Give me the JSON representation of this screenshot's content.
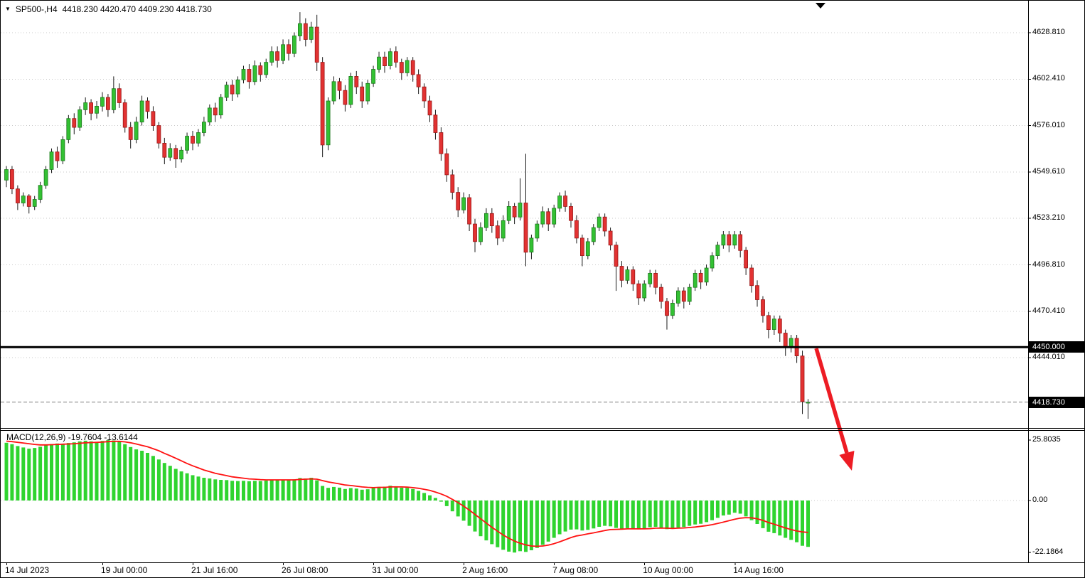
{
  "header": {
    "collapse_icon": "▼",
    "symbol_period": "SP500-,H4",
    "ohlc_text": "4418.230 4420.470 4409.230 4418.730"
  },
  "colors": {
    "bull": "#33C133",
    "bull_stroke": "#1D7A1D",
    "bear": "#E23232",
    "bear_stroke": "#9A1616",
    "wick": "#1A1A1A",
    "macd_hist": "#2FD42F",
    "macd_signal": "#FF1212",
    "arrow": "#ED1C24",
    "grid": "#C9C9C9",
    "hline": "#000000",
    "axis_line": "#000000",
    "label_bg": "#000000",
    "label_fg": "#FFFFFF"
  },
  "chart_data": [
    {
      "type": "candlestick",
      "title": "SP500-,H4",
      "symbol": "SP500-",
      "timeframe": "H4",
      "last_ohlc": {
        "open": 4418.23,
        "high": 4420.47,
        "low": 4409.23,
        "close": 4418.73
      },
      "ylim": [
        4404,
        4647
      ],
      "y_axis_labels": [
        4628.81,
        4602.41,
        4576.01,
        4549.61,
        4523.21,
        4496.81,
        4470.41,
        4444.01
      ],
      "horizontal_line": 4450.0,
      "bid_price": 4418.73,
      "x_axis_labels": [
        {
          "text": "14 Jul 2023",
          "bar": 0
        },
        {
          "text": "19 Jul 00:00",
          "bar": 17
        },
        {
          "text": "21 Jul 16:00",
          "bar": 33
        },
        {
          "text": "26 Jul 08:00",
          "bar": 49
        },
        {
          "text": "31 Jul 00:00",
          "bar": 65
        },
        {
          "text": "2 Aug 16:00",
          "bar": 81
        },
        {
          "text": "7 Aug 08:00",
          "bar": 97
        },
        {
          "text": "10 Aug 00:00",
          "bar": 113
        },
        {
          "text": "14 Aug 16:00",
          "bar": 129
        }
      ],
      "candles": [
        [
          4545,
          4553,
          4541,
          4551
        ],
        [
          4551,
          4553,
          4537,
          4540
        ],
        [
          4540,
          4542,
          4528,
          4532
        ],
        [
          4532,
          4538,
          4530,
          4536
        ],
        [
          4536,
          4537,
          4526,
          4530
        ],
        [
          4530,
          4536,
          4528,
          4534
        ],
        [
          4534,
          4544,
          4532,
          4542
        ],
        [
          4542,
          4553,
          4540,
          4551
        ],
        [
          4551,
          4563,
          4549,
          4561
        ],
        [
          4561,
          4564,
          4552,
          4556
        ],
        [
          4556,
          4570,
          4554,
          4568
        ],
        [
          4568,
          4582,
          4566,
          4580
        ],
        [
          4580,
          4583,
          4571,
          4575
        ],
        [
          4575,
          4587,
          4573,
          4585
        ],
        [
          4585,
          4592,
          4582,
          4589
        ],
        [
          4589,
          4591,
          4579,
          4583
        ],
        [
          4583,
          4590,
          4580,
          4587
        ],
        [
          4587,
          4595,
          4584,
          4592
        ],
        [
          4592,
          4594,
          4581,
          4585
        ],
        [
          4585,
          4604,
          4583,
          4597
        ],
        [
          4597,
          4600,
          4586,
          4589
        ],
        [
          4589,
          4591,
          4572,
          4575
        ],
        [
          4575,
          4578,
          4563,
          4568
        ],
        [
          4568,
          4581,
          4566,
          4578
        ],
        [
          4578,
          4593,
          4576,
          4590
        ],
        [
          4590,
          4592,
          4580,
          4584
        ],
        [
          4584,
          4587,
          4573,
          4576
        ],
        [
          4576,
          4578,
          4563,
          4566
        ],
        [
          4566,
          4569,
          4554,
          4558
        ],
        [
          4558,
          4566,
          4556,
          4563
        ],
        [
          4563,
          4565,
          4552,
          4557
        ],
        [
          4557,
          4564,
          4555,
          4562
        ],
        [
          4562,
          4572,
          4560,
          4570
        ],
        [
          4570,
          4573,
          4562,
          4566
        ],
        [
          4566,
          4574,
          4564,
          4572
        ],
        [
          4572,
          4581,
          4570,
          4578
        ],
        [
          4578,
          4588,
          4576,
          4586
        ],
        [
          4586,
          4589,
          4578,
          4582
        ],
        [
          4582,
          4594,
          4580,
          4592
        ],
        [
          4592,
          4601,
          4590,
          4599
        ],
        [
          4599,
          4602,
          4590,
          4594
        ],
        [
          4594,
          4604,
          4592,
          4602
        ],
        [
          4602,
          4610,
          4600,
          4608
        ],
        [
          4608,
          4611,
          4597,
          4601
        ],
        [
          4601,
          4613,
          4599,
          4610
        ],
        [
          4610,
          4612,
          4601,
          4605
        ],
        [
          4605,
          4614,
          4603,
          4612
        ],
        [
          4612,
          4621,
          4610,
          4618
        ],
        [
          4618,
          4621,
          4609,
          4613
        ],
        [
          4613,
          4625,
          4611,
          4622
        ],
        [
          4622,
          4625,
          4613,
          4617
        ],
        [
          4617,
          4629,
          4615,
          4627
        ],
        [
          4627,
          4640.5,
          4624,
          4634
        ],
        [
          4634,
          4637,
          4621,
          4625
        ],
        [
          4625,
          4635,
          4623,
          4632
        ],
        [
          4632,
          4639,
          4607,
          4612
        ],
        [
          4612,
          4615,
          4558,
          4565
        ],
        [
          4565,
          4592,
          4562,
          4590
        ],
        [
          4590,
          4604,
          4588,
          4601
        ],
        [
          4601,
          4603,
          4591,
          4596
        ],
        [
          4596,
          4599,
          4584,
          4588
        ],
        [
          4588,
          4606,
          4586,
          4604
        ],
        [
          4604,
          4607,
          4594,
          4598
        ],
        [
          4598,
          4601,
          4586,
          4590
        ],
        [
          4590,
          4602,
          4588,
          4600
        ],
        [
          4600,
          4610,
          4598,
          4608
        ],
        [
          4608,
          4618,
          4606,
          4615
        ],
        [
          4615,
          4618,
          4606,
          4610
        ],
        [
          4610,
          4620,
          4608,
          4618
        ],
        [
          4618,
          4621,
          4609,
          4612
        ],
        [
          4612,
          4614,
          4602,
          4606
        ],
        [
          4606,
          4615,
          4604,
          4613
        ],
        [
          4613,
          4615,
          4601,
          4605
        ],
        [
          4605,
          4608,
          4594,
          4598
        ],
        [
          4598,
          4600,
          4586,
          4590
        ],
        [
          4590,
          4593,
          4578,
          4582
        ],
        [
          4582,
          4585,
          4568,
          4572
        ],
        [
          4572,
          4575,
          4556,
          4560
        ],
        [
          4560,
          4563,
          4544,
          4548
        ],
        [
          4548,
          4551,
          4534,
          4538
        ],
        [
          4538,
          4541,
          4524,
          4528
        ],
        [
          4528,
          4538,
          4526,
          4535
        ],
        [
          4535,
          4537,
          4516,
          4520
        ],
        [
          4520,
          4523,
          4504,
          4510
        ],
        [
          4510,
          4521,
          4508,
          4518
        ],
        [
          4518,
          4529,
          4516,
          4526
        ],
        [
          4526,
          4529,
          4515,
          4519
        ],
        [
          4519,
          4522,
          4508,
          4512
        ],
        [
          4512,
          4525,
          4510,
          4522
        ],
        [
          4522,
          4533,
          4520,
          4530
        ],
        [
          4530,
          4532,
          4520,
          4524
        ],
        [
          4524,
          4546,
          4522,
          4532
        ],
        [
          4532,
          4560,
          4496,
          4504
        ],
        [
          4504,
          4514,
          4500,
          4512
        ],
        [
          4512,
          4522,
          4510,
          4520
        ],
        [
          4520,
          4530,
          4518,
          4527
        ],
        [
          4527,
          4529,
          4516,
          4520
        ],
        [
          4520,
          4531,
          4518,
          4529
        ],
        [
          4529,
          4538,
          4527,
          4536
        ],
        [
          4536,
          4539,
          4527,
          4530
        ],
        [
          4530,
          4532,
          4518,
          4522
        ],
        [
          4522,
          4525,
          4509,
          4512
        ],
        [
          4512,
          4514,
          4496,
          4502
        ],
        [
          4502,
          4512,
          4500,
          4510
        ],
        [
          4510,
          4520,
          4508,
          4518
        ],
        [
          4518,
          4526,
          4516,
          4524
        ],
        [
          4524,
          4526,
          4513,
          4516
        ],
        [
          4516,
          4518,
          4505,
          4508
        ],
        [
          4508,
          4510,
          4482,
          4496
        ],
        [
          4496,
          4499,
          4484,
          4488
        ],
        [
          4488,
          4496,
          4486,
          4494
        ],
        [
          4494,
          4496,
          4482,
          4486
        ],
        [
          4486,
          4488,
          4474,
          4478
        ],
        [
          4478,
          4488,
          4476,
          4486
        ],
        [
          4486,
          4494,
          4484,
          4492
        ],
        [
          4492,
          4494,
          4480,
          4484
        ],
        [
          4484,
          4486,
          4472,
          4476
        ],
        [
          4476,
          4478,
          4460,
          4468
        ],
        [
          4468,
          4477,
          4466,
          4475
        ],
        [
          4475,
          4484,
          4473,
          4482
        ],
        [
          4482,
          4484,
          4472,
          4476
        ],
        [
          4476,
          4486,
          4474,
          4484
        ],
        [
          4484,
          4494,
          4482,
          4492
        ],
        [
          4492,
          4494,
          4483,
          4487
        ],
        [
          4487,
          4497,
          4485,
          4495
        ],
        [
          4495,
          4504,
          4493,
          4502
        ],
        [
          4502,
          4510,
          4500,
          4508
        ],
        [
          4508,
          4516,
          4506,
          4514
        ],
        [
          4514,
          4516,
          4504,
          4508
        ],
        [
          4508,
          4516,
          4506,
          4514
        ],
        [
          4514,
          4516,
          4501,
          4505
        ],
        [
          4505,
          4507,
          4491,
          4495
        ],
        [
          4495,
          4497,
          4481,
          4485
        ],
        [
          4485,
          4488,
          4473,
          4477
        ],
        [
          4477,
          4479,
          4464,
          4468
        ],
        [
          4468,
          4470,
          4455,
          4460
        ],
        [
          4460,
          4468,
          4457,
          4466
        ],
        [
          4466,
          4468,
          4453,
          4458
        ],
        [
          4458,
          4460,
          4445,
          4450
        ],
        [
          4450,
          4457,
          4447,
          4455
        ],
        [
          4455,
          4457,
          4441,
          4445
        ],
        [
          4445,
          4448,
          4412,
          4419
        ],
        [
          4418.23,
          4420.47,
          4409.23,
          4418.73
        ]
      ]
    },
    {
      "type": "macd",
      "label": "MACD(12,26,9) -19.7604 -13.6144",
      "params": [
        12,
        26,
        9
      ],
      "macd_value": -19.7604,
      "signal_value": -13.6144,
      "y_range": [
        -22.1864,
        25.8035
      ],
      "scale_labels": [
        {
          "text": "25.8035",
          "value": 25.8035
        },
        {
          "text": "0.00",
          "value": 0
        },
        {
          "text": "-22.1864",
          "value": -22.1864
        }
      ],
      "histogram": [
        24.6,
        24.0,
        23.2,
        22.6,
        22.1,
        22.4,
        22.9,
        23.5,
        24.1,
        24.3,
        24.1,
        24.5,
        24.8,
        25.2,
        25.5,
        25.2,
        25.0,
        25.4,
        25.8,
        25.6,
        25.0,
        24.0,
        22.8,
        21.8,
        21.2,
        20.3,
        19.0,
        17.5,
        16.0,
        14.8,
        13.5,
        12.4,
        11.6,
        10.8,
        10.2,
        9.7,
        9.4,
        9.0,
        8.8,
        8.7,
        8.4,
        8.3,
        8.4,
        8.2,
        8.4,
        8.3,
        8.5,
        8.8,
        8.6,
        8.8,
        8.6,
        9.0,
        9.6,
        9.4,
        9.7,
        8.6,
        6.2,
        5.4,
        5.8,
        5.5,
        4.9,
        5.3,
        5.1,
        4.6,
        4.8,
        5.3,
        5.8,
        5.9,
        6.3,
        6.1,
        5.5,
        5.4,
        4.9,
        4.1,
        3.2,
        2.2,
        1.1,
        -0.5,
        -2.4,
        -4.6,
        -6.8,
        -8.6,
        -10.8,
        -13.2,
        -15.2,
        -17.0,
        -18.6,
        -19.9,
        -21.0,
        -21.8,
        -22.19,
        -21.6,
        -21.9,
        -21.2,
        -20.2,
        -18.9,
        -17.5,
        -15.9,
        -14.4,
        -13.2,
        -12.4,
        -12.3,
        -12.8,
        -12.5,
        -11.9,
        -11.2,
        -10.8,
        -11.0,
        -11.7,
        -12.1,
        -11.8,
        -12.0,
        -12.3,
        -12.0,
        -11.4,
        -11.2,
        -11.5,
        -12.2,
        -12.0,
        -11.5,
        -11.3,
        -10.8,
        -10.2,
        -9.9,
        -9.2,
        -8.4,
        -7.4,
        -6.4,
        -6.0,
        -5.2,
        -5.6,
        -6.8,
        -8.4,
        -10.0,
        -11.8,
        -13.3,
        -13.9,
        -14.9,
        -15.9,
        -16.8,
        -17.8,
        -19.3,
        -19.7604
      ],
      "signal": [
        25.3,
        25.1,
        24.8,
        24.5,
        24.2,
        23.9,
        23.7,
        23.7,
        23.8,
        23.9,
        24.0,
        24.1,
        24.2,
        24.4,
        24.6,
        24.7,
        24.8,
        24.9,
        25.1,
        25.2,
        25.2,
        25.0,
        24.6,
        24.1,
        23.5,
        22.9,
        22.1,
        21.2,
        20.1,
        19.1,
        18.0,
        16.9,
        15.8,
        14.8,
        13.9,
        13.0,
        12.3,
        11.6,
        11.1,
        10.6,
        10.1,
        9.8,
        9.5,
        9.2,
        9.1,
        8.9,
        8.8,
        8.8,
        8.8,
        8.8,
        8.8,
        8.8,
        9.0,
        9.1,
        9.2,
        9.1,
        8.5,
        7.9,
        7.5,
        7.1,
        6.6,
        6.4,
        6.1,
        5.8,
        5.6,
        5.5,
        5.6,
        5.6,
        5.8,
        5.8,
        5.8,
        5.7,
        5.5,
        5.2,
        4.8,
        4.3,
        3.6,
        2.8,
        1.8,
        0.5,
        -0.9,
        -2.4,
        -4.1,
        -5.9,
        -7.8,
        -9.6,
        -11.4,
        -13.1,
        -14.7,
        -16.1,
        -17.3,
        -18.2,
        -18.9,
        -19.4,
        -19.5,
        -19.4,
        -19.0,
        -18.4,
        -17.6,
        -16.7,
        -15.8,
        -15.1,
        -14.7,
        -14.2,
        -13.8,
        -13.3,
        -12.8,
        -12.4,
        -12.3,
        -12.2,
        -12.1,
        -12.1,
        -12.1,
        -12.1,
        -12.0,
        -11.8,
        -11.8,
        -11.8,
        -11.9,
        -11.8,
        -11.7,
        -11.5,
        -11.3,
        -11.0,
        -10.7,
        -10.3,
        -9.8,
        -9.2,
        -8.6,
        -8.0,
        -7.5,
        -7.3,
        -7.4,
        -7.8,
        -8.5,
        -9.4,
        -10.1,
        -10.9,
        -11.7,
        -12.4,
        -13.0,
        -13.4,
        -13.6144
      ]
    }
  ],
  "drawing_objects": {
    "horizontal_line_price": 4450.0,
    "arrow_direction": "down-right"
  }
}
